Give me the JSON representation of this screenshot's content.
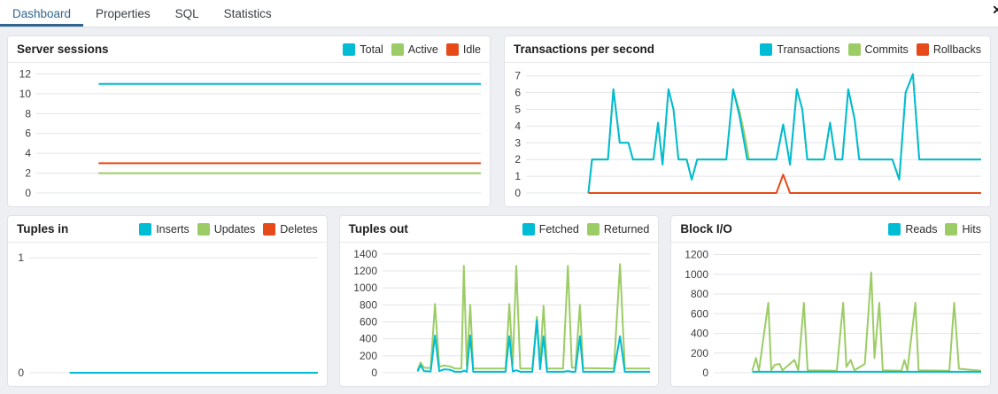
{
  "tabs": {
    "items": [
      {
        "label": "Dashboard",
        "active": true
      },
      {
        "label": "Properties",
        "active": false
      },
      {
        "label": "SQL",
        "active": false
      },
      {
        "label": "Statistics",
        "active": false
      }
    ],
    "close_icon": "✕"
  },
  "colors": {
    "cyan": "#00BCD4",
    "green": "#9CCC65",
    "red": "#E64A19",
    "accent": "#326690",
    "grid": "#e3e4ea",
    "tick_text": "#3e3e3e"
  },
  "chart_data": [
    {
      "id": "server_sessions",
      "type": "line",
      "title": "Server sessions",
      "x_unit": "percent-of-plot-width",
      "yticks": [
        0,
        2,
        4,
        6,
        8,
        10,
        12
      ],
      "ylim": [
        0,
        12.4
      ],
      "series": [
        {
          "name": "Total",
          "color": "#00BCD4",
          "z": 1,
          "points": [
            [
              14,
              11
            ],
            [
              100,
              11
            ]
          ]
        },
        {
          "name": "Active",
          "color": "#9CCC65",
          "z": 2,
          "points": [
            [
              14,
              2
            ],
            [
              100,
              2
            ]
          ]
        },
        {
          "name": "Idle",
          "color": "#E64A19",
          "z": 3,
          "points": [
            [
              14,
              3
            ],
            [
              100,
              3
            ]
          ]
        }
      ]
    },
    {
      "id": "transactions_per_second",
      "type": "line",
      "title": "Transactions per second",
      "x_unit": "percent-of-plot-width",
      "yticks": [
        0,
        1,
        2,
        3,
        4,
        5,
        6,
        7
      ],
      "ylim": [
        0,
        7.35
      ],
      "series": [
        {
          "name": "Transactions",
          "color": "#00BCD4",
          "z": 2,
          "points": [
            [
              13.7,
              0
            ],
            [
              14.5,
              2
            ],
            [
              18,
              2
            ],
            [
              19.2,
              6.2
            ],
            [
              20.6,
              3
            ],
            [
              22.5,
              3
            ],
            [
              23.5,
              2
            ],
            [
              28,
              2
            ],
            [
              29,
              4.2
            ],
            [
              30,
              1.7
            ],
            [
              31.3,
              6.2
            ],
            [
              32.4,
              5
            ],
            [
              33.5,
              2
            ],
            [
              35.3,
              2
            ],
            [
              36.4,
              0.8
            ],
            [
              37.6,
              2
            ],
            [
              44,
              2
            ],
            [
              45.5,
              6.2
            ],
            [
              46.9,
              4.6
            ],
            [
              48.6,
              2
            ],
            [
              55,
              2
            ],
            [
              56.5,
              4.1
            ],
            [
              58,
              1.7
            ],
            [
              59.5,
              6.2
            ],
            [
              60.7,
              5
            ],
            [
              61.8,
              2
            ],
            [
              65.5,
              2
            ],
            [
              66.8,
              4.2
            ],
            [
              68,
              2
            ],
            [
              69.5,
              2
            ],
            [
              70.8,
              6.2
            ],
            [
              72.2,
              4.4
            ],
            [
              73.2,
              2
            ],
            [
              80.5,
              2
            ],
            [
              82,
              0.8
            ],
            [
              83.4,
              6
            ],
            [
              85,
              7.1
            ],
            [
              86.4,
              2
            ],
            [
              100,
              2
            ]
          ]
        },
        {
          "name": "Commits",
          "color": "#9CCC65",
          "z": 1,
          "points": [
            [
              13.7,
              0
            ],
            [
              14.5,
              2
            ],
            [
              18,
              2
            ],
            [
              19.2,
              6.2
            ],
            [
              20.6,
              3
            ],
            [
              22.5,
              3
            ],
            [
              23.5,
              2
            ],
            [
              28,
              2
            ],
            [
              29,
              4.2
            ],
            [
              30,
              1.7
            ],
            [
              31.3,
              6.2
            ],
            [
              32.4,
              5
            ],
            [
              33.5,
              2
            ],
            [
              35.3,
              2
            ],
            [
              36.4,
              0.8
            ],
            [
              37.6,
              2
            ],
            [
              44,
              2
            ],
            [
              45.5,
              6.2
            ],
            [
              46.9,
              4.9
            ],
            [
              48,
              3.5
            ],
            [
              49,
              2
            ],
            [
              55,
              2
            ],
            [
              56.5,
              4.1
            ],
            [
              57.4,
              2.7
            ],
            [
              58,
              1.7
            ],
            [
              59.5,
              6.2
            ],
            [
              60.7,
              5
            ],
            [
              61.8,
              2
            ],
            [
              65.5,
              2
            ],
            [
              66.8,
              4.2
            ],
            [
              68,
              2
            ],
            [
              69.5,
              2
            ],
            [
              70.8,
              6.2
            ],
            [
              72.2,
              4.4
            ],
            [
              73.2,
              2
            ],
            [
              80.5,
              2
            ],
            [
              82,
              0.8
            ],
            [
              83.4,
              6
            ],
            [
              85,
              7.1
            ],
            [
              86.4,
              2
            ],
            [
              100,
              2
            ]
          ]
        },
        {
          "name": "Rollbacks",
          "color": "#E64A19",
          "z": 3,
          "points": [
            [
              13.7,
              0
            ],
            [
              55,
              0
            ],
            [
              56.5,
              1.1
            ],
            [
              58,
              0
            ],
            [
              100,
              0
            ]
          ]
        }
      ]
    },
    {
      "id": "tuples_in",
      "type": "line",
      "title": "Tuples in",
      "x_unit": "percent-of-plot-width",
      "yticks": [
        0,
        1
      ],
      "ylim": [
        0,
        1.07
      ],
      "series": [
        {
          "name": "Inserts",
          "color": "#00BCD4",
          "z": 3,
          "points": [
            [
              14,
              0
            ],
            [
              100,
              0
            ]
          ]
        },
        {
          "name": "Updates",
          "color": "#9CCC65",
          "z": 2,
          "points": [
            [
              14,
              0
            ],
            [
              100,
              0
            ]
          ]
        },
        {
          "name": "Deletes",
          "color": "#E64A19",
          "z": 1,
          "points": [
            [
              14,
              0
            ],
            [
              100,
              0
            ]
          ]
        }
      ]
    },
    {
      "id": "tuples_out",
      "type": "line",
      "title": "Tuples out",
      "x_unit": "percent-of-plot-width",
      "yticks": [
        0,
        200,
        400,
        600,
        800,
        1000,
        1200,
        1400
      ],
      "ylim": [
        0,
        1450
      ],
      "series": [
        {
          "name": "Fetched",
          "color": "#00BCD4",
          "z": 2,
          "points": [
            [
              13.1,
              15
            ],
            [
              14.2,
              90
            ],
            [
              15.5,
              20
            ],
            [
              18,
              15
            ],
            [
              19.6,
              440
            ],
            [
              21.2,
              20
            ],
            [
              23,
              40
            ],
            [
              25.2,
              35
            ],
            [
              27,
              12
            ],
            [
              29.5,
              12
            ],
            [
              30.4,
              25
            ],
            [
              31.5,
              12
            ],
            [
              32.8,
              440
            ],
            [
              33.9,
              12
            ],
            [
              46,
              12
            ],
            [
              47.4,
              430
            ],
            [
              48.7,
              15
            ],
            [
              50,
              30
            ],
            [
              51.5,
              12
            ],
            [
              56,
              12
            ],
            [
              57.7,
              620
            ],
            [
              58.9,
              40
            ],
            [
              60.2,
              430
            ],
            [
              61.5,
              12
            ],
            [
              67.5,
              12
            ],
            [
              69.3,
              20
            ],
            [
              70.8,
              12
            ],
            [
              72.1,
              12
            ],
            [
              73.8,
              430
            ],
            [
              75,
              12
            ],
            [
              86.5,
              12
            ],
            [
              88.8,
              430
            ],
            [
              90.6,
              12
            ],
            [
              100,
              12
            ]
          ]
        },
        {
          "name": "Returned",
          "color": "#9CCC65",
          "z": 1,
          "points": [
            [
              13.1,
              30
            ],
            [
              14.2,
              120
            ],
            [
              15.5,
              60
            ],
            [
              18,
              55
            ],
            [
              19.6,
              810
            ],
            [
              21.2,
              70
            ],
            [
              23,
              85
            ],
            [
              25.2,
              75
            ],
            [
              27,
              50
            ],
            [
              29.5,
              50
            ],
            [
              30.4,
              1260
            ],
            [
              31.5,
              80
            ],
            [
              32.8,
              800
            ],
            [
              33.9,
              50
            ],
            [
              46,
              50
            ],
            [
              47.4,
              810
            ],
            [
              48.7,
              100
            ],
            [
              50,
              1260
            ],
            [
              51.5,
              50
            ],
            [
              56,
              50
            ],
            [
              57.7,
              660
            ],
            [
              58.9,
              120
            ],
            [
              60.2,
              790
            ],
            [
              61.5,
              50
            ],
            [
              67.5,
              50
            ],
            [
              69.3,
              1260
            ],
            [
              70.8,
              60
            ],
            [
              72.1,
              60
            ],
            [
              73.8,
              800
            ],
            [
              75,
              55
            ],
            [
              86.5,
              50
            ],
            [
              88.8,
              1280
            ],
            [
              90.6,
              50
            ],
            [
              100,
              50
            ]
          ]
        }
      ]
    },
    {
      "id": "block_io",
      "type": "line",
      "title": "Block I/O",
      "x_unit": "percent-of-plot-width",
      "yticks": [
        0,
        200,
        400,
        600,
        800,
        1000,
        1200
      ],
      "ylim": [
        0,
        1250
      ],
      "series": [
        {
          "name": "Reads",
          "color": "#00BCD4",
          "z": 2,
          "points": [
            [
              14.4,
              10
            ],
            [
              100,
              10
            ]
          ]
        },
        {
          "name": "Hits",
          "color": "#9CCC65",
          "z": 1,
          "points": [
            [
              14.4,
              20
            ],
            [
              15.8,
              150
            ],
            [
              16.9,
              20
            ],
            [
              20.4,
              710
            ],
            [
              21.5,
              25
            ],
            [
              22.8,
              80
            ],
            [
              24.6,
              90
            ],
            [
              25.7,
              25
            ],
            [
              30.2,
              130
            ],
            [
              31.6,
              25
            ],
            [
              33.7,
              710
            ],
            [
              35.1,
              25
            ],
            [
              46,
              20
            ],
            [
              48.4,
              710
            ],
            [
              49.6,
              60
            ],
            [
              51.2,
              130
            ],
            [
              52.6,
              25
            ],
            [
              56.5,
              90
            ],
            [
              58.9,
              1020
            ],
            [
              60.1,
              150
            ],
            [
              61.9,
              710
            ],
            [
              63.2,
              25
            ],
            [
              70.2,
              20
            ],
            [
              71.3,
              130
            ],
            [
              72.4,
              20
            ],
            [
              75.4,
              710
            ],
            [
              76.6,
              25
            ],
            [
              88.1,
              20
            ],
            [
              89.9,
              710
            ],
            [
              91.7,
              40
            ],
            [
              100,
              20
            ]
          ]
        }
      ]
    }
  ]
}
